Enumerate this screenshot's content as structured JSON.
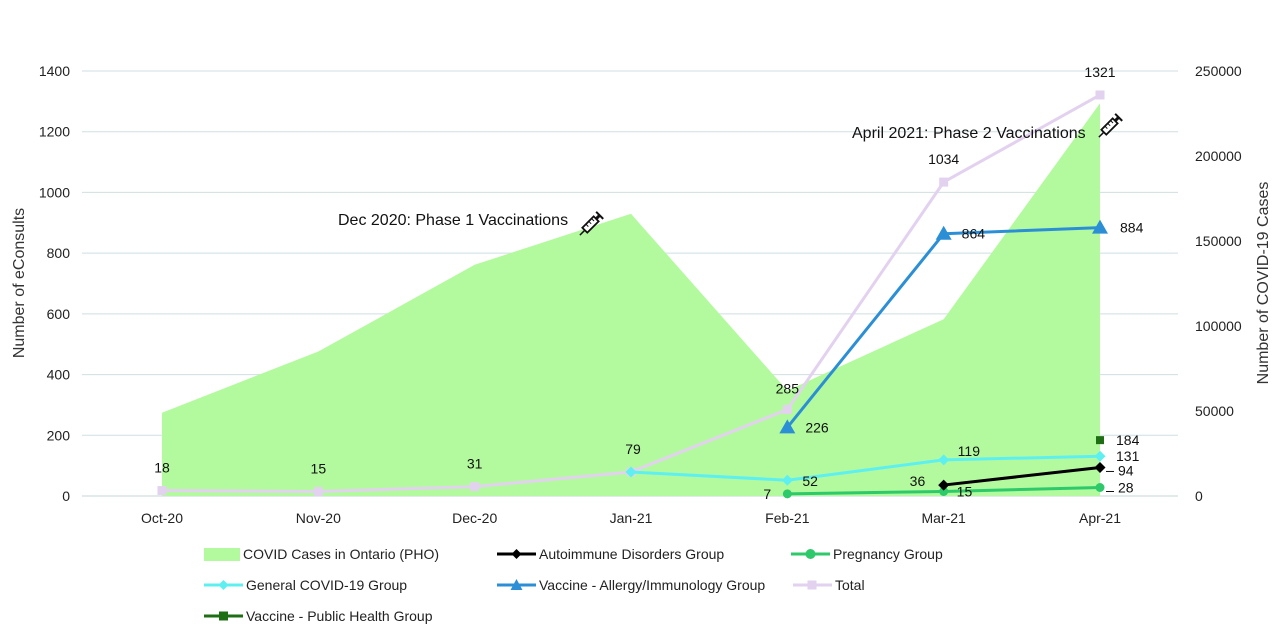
{
  "chart_data": {
    "type": "line",
    "categories": [
      "Oct-20",
      "Nov-20",
      "Dec-20",
      "Jan-21",
      "Feb-21",
      "Mar-21",
      "Apr-21"
    ],
    "y_left": {
      "label": "Number of eConsults",
      "min": 0,
      "max": 1400,
      "ticks": [
        0,
        200,
        400,
        600,
        800,
        1000,
        1200,
        1400
      ]
    },
    "y_right": {
      "label": "Number of COVID-19 Cases",
      "min": 0,
      "max": 250000,
      "ticks": [
        0,
        50000,
        100000,
        150000,
        200000,
        250000
      ]
    },
    "grid": true,
    "legend_position": "bottom",
    "area_series": {
      "name": "COVID Cases in Ontario (PHO)",
      "axis": "right",
      "color": "#b3fa9e",
      "values": [
        49000,
        85000,
        136000,
        166000,
        62000,
        104000,
        231000
      ]
    },
    "series": [
      {
        "name": "Autoimmune Disorders Group",
        "color": "#000000",
        "marker": "diamond",
        "values": [
          null,
          null,
          null,
          null,
          null,
          36,
          94
        ]
      },
      {
        "name": "Pregnancy Group",
        "color": "#2ec96a",
        "marker": "circle",
        "values": [
          null,
          null,
          null,
          null,
          7,
          15,
          28
        ]
      },
      {
        "name": "General COVID-19 Group",
        "color": "#5ef0f0",
        "marker": "diamond",
        "values": [
          null,
          null,
          null,
          79,
          52,
          119,
          131
        ]
      },
      {
        "name": "Vaccine - Allergy/Immunology Group",
        "color": "#2c8fd6",
        "marker": "triangle",
        "values": [
          null,
          null,
          null,
          null,
          226,
          864,
          884
        ]
      },
      {
        "name": "Total",
        "color": "#e3d2ef",
        "marker": "square",
        "values": [
          18,
          15,
          31,
          79,
          285,
          1034,
          1321
        ]
      },
      {
        "name": "Vaccine - Public Health Group",
        "color": "#1e6e14",
        "marker": "square",
        "values": [
          null,
          null,
          null,
          null,
          null,
          null,
          184
        ]
      }
    ],
    "data_labels": [
      {
        "text": "18",
        "category": 0,
        "value": 18,
        "dx": 0,
        "dy": -18,
        "anchor": "middle"
      },
      {
        "text": "15",
        "category": 1,
        "value": 15,
        "dx": 0,
        "dy": -18,
        "anchor": "middle"
      },
      {
        "text": "31",
        "category": 2,
        "value": 31,
        "dx": 0,
        "dy": -18,
        "anchor": "middle"
      },
      {
        "text": "79",
        "category": 3,
        "value": 79,
        "dx": 2,
        "dy": -18,
        "anchor": "middle"
      },
      {
        "text": "285",
        "category": 4,
        "value": 285,
        "dx": 0,
        "dy": -16,
        "anchor": "middle"
      },
      {
        "text": "226",
        "category": 4,
        "value": 226,
        "dx": 18,
        "dy": 5,
        "anchor": "start"
      },
      {
        "text": "52",
        "category": 4,
        "value": 52,
        "dx": 15,
        "dy": 6,
        "anchor": "start"
      },
      {
        "text": "7",
        "category": 4,
        "value": 7,
        "dx": -24,
        "dy": 5,
        "anchor": "start"
      },
      {
        "text": "1034",
        "category": 5,
        "value": 1034,
        "dx": 0,
        "dy": -18,
        "anchor": "middle"
      },
      {
        "text": "864",
        "category": 5,
        "value": 864,
        "dx": 18,
        "dy": 5,
        "anchor": "start"
      },
      {
        "text": "119",
        "category": 5,
        "value": 119,
        "dx": 14,
        "dy": -4,
        "anchor": "start"
      },
      {
        "text": "36",
        "category": 5,
        "value": 36,
        "dx": -34,
        "dy": 1,
        "anchor": "start"
      },
      {
        "text": "15",
        "category": 5,
        "value": 15,
        "dx": 13,
        "dy": 5,
        "anchor": "start"
      },
      {
        "text": "1321",
        "category": 6,
        "value": 1321,
        "dx": 0,
        "dy": -18,
        "anchor": "middle"
      },
      {
        "text": "884",
        "category": 6,
        "value": 884,
        "dx": 20,
        "dy": 5,
        "anchor": "start"
      },
      {
        "text": "184",
        "category": 6,
        "value": 184,
        "dx": 16,
        "dy": 5,
        "anchor": "start"
      },
      {
        "text": "131",
        "category": 6,
        "value": 131,
        "dx": 16,
        "dy": 5,
        "anchor": "start"
      },
      {
        "text": "94",
        "category": 6,
        "value": 94,
        "dx": 18,
        "dy": 8,
        "anchor": "start"
      },
      {
        "text": "28",
        "category": 6,
        "value": 28,
        "dx": 18,
        "dy": 5,
        "anchor": "start"
      }
    ],
    "annotations": [
      {
        "text": "Dec 2020: Phase 1 Vaccinations",
        "icon": "syringe-icon"
      },
      {
        "text": "April 2021: Phase 2 Vaccinations",
        "icon": "syringe-icon"
      }
    ]
  }
}
